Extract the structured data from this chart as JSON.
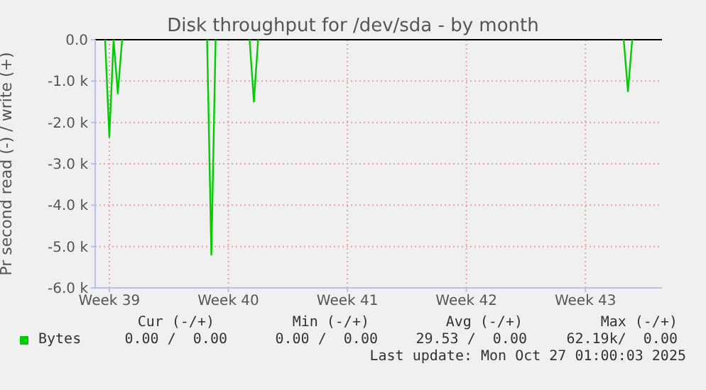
{
  "chart_data": {
    "type": "line",
    "title": "Disk throughput for /dev/sda - by month",
    "ylabel": "Pr second read (-) / write (+)",
    "categories": [
      null,
      null,
      null,
      "Week 39",
      null,
      null,
      null,
      null,
      null,
      null,
      null,
      null,
      null,
      null,
      null,
      null,
      null,
      null,
      null,
      null,
      null,
      null,
      null,
      null,
      null,
      null,
      null,
      null,
      null,
      null,
      null,
      "Week 40",
      null,
      null,
      null,
      null,
      null,
      null,
      null,
      null,
      null,
      null,
      null,
      null,
      null,
      null,
      null,
      null,
      null,
      null,
      null,
      null,
      null,
      null,
      null,
      null,
      null,
      null,
      null,
      "Week 41",
      null,
      null,
      null,
      null,
      null,
      null,
      null,
      null,
      null,
      null,
      null,
      null,
      null,
      null,
      null,
      null,
      null,
      null,
      null,
      null,
      null,
      null,
      null,
      null,
      null,
      null,
      null,
      "Week 42",
      null,
      null,
      null,
      null,
      null,
      null,
      null,
      null,
      null,
      null,
      null,
      null,
      null,
      null,
      null,
      null,
      null,
      null,
      null,
      null,
      null,
      null,
      null,
      null,
      null,
      null,
      null,
      "Week 43",
      null,
      null,
      null,
      null,
      null,
      null,
      null,
      null,
      null,
      null,
      null,
      null,
      null,
      null,
      null,
      null,
      null,
      null
    ],
    "series": [
      {
        "name": "Bytes",
        "color": "#00cc00",
        "values": [
          null,
          null,
          0,
          -2350,
          0,
          -1300,
          0,
          null,
          null,
          null,
          null,
          null,
          null,
          null,
          null,
          null,
          null,
          null,
          null,
          null,
          null,
          null,
          null,
          null,
          null,
          null,
          0,
          -5200,
          0,
          null,
          null,
          null,
          null,
          null,
          null,
          null,
          0,
          -1500,
          0,
          null,
          null,
          null,
          null,
          null,
          null,
          null,
          null,
          null,
          null,
          null,
          null,
          null,
          null,
          null,
          null,
          null,
          null,
          null,
          null,
          null,
          null,
          null,
          null,
          null,
          null,
          null,
          null,
          null,
          null,
          null,
          null,
          null,
          null,
          null,
          null,
          null,
          null,
          null,
          null,
          null,
          null,
          null,
          null,
          null,
          null,
          null,
          null,
          null,
          null,
          null,
          null,
          null,
          null,
          null,
          null,
          null,
          null,
          null,
          null,
          null,
          null,
          null,
          null,
          null,
          null,
          null,
          null,
          null,
          null,
          null,
          null,
          null,
          null,
          null,
          null,
          null,
          null,
          null,
          null,
          null,
          null,
          null,
          null,
          null,
          0,
          -1250,
          0,
          null,
          null,
          null,
          null,
          null,
          null,
          null
        ]
      }
    ],
    "ylim": [
      -6000,
      0
    ],
    "yticks": [
      {
        "value": -6000,
        "label": "-6.0 k"
      },
      {
        "value": -5000,
        "label": "-5.0 k"
      },
      {
        "value": -4000,
        "label": "-4.0 k"
      },
      {
        "value": -3000,
        "label": "-3.0 k"
      },
      {
        "value": -2000,
        "label": "-2.0 k"
      },
      {
        "value": -1000,
        "label": "-1.0 k"
      },
      {
        "value": 0,
        "label": "0.0"
      }
    ],
    "ref_lines": [
      {
        "axis": "y",
        "value": 0,
        "color": "#000000"
      }
    ],
    "grid": true,
    "legend": "bottom",
    "marker": "none",
    "line_style": "solid",
    "annotations": [
      "Cur (-/+)",
      "Min (-/+)",
      "Avg (-/+)",
      "Max (-/+)",
      "0.00 /  0.00",
      "0.00 /  0.00",
      "29.53 /  0.00",
      "62.19k/  0.00",
      "Last update: Mon Oct 27 01:00:03 2025"
    ]
  }
}
